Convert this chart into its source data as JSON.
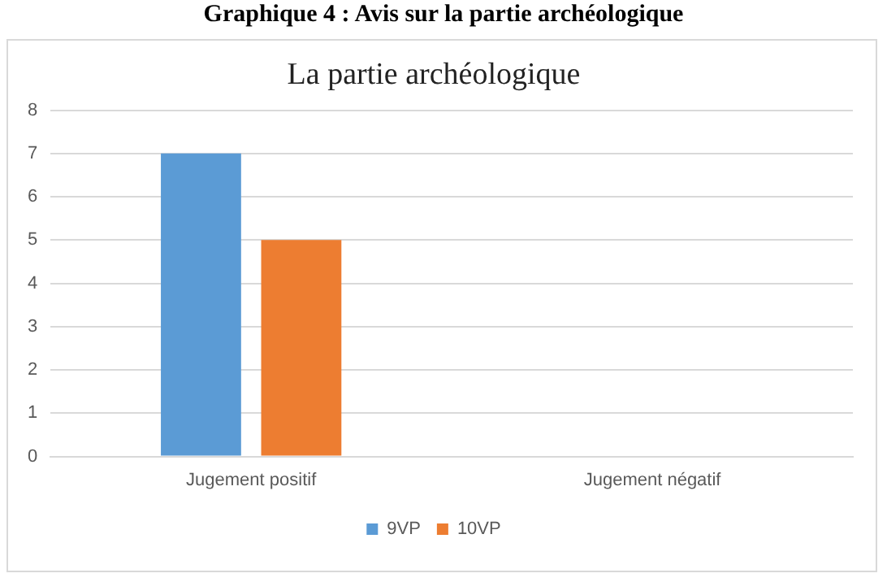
{
  "chart_data": {
    "type": "bar",
    "title": "Graphique 4 : Avis sur la partie archéologique",
    "subtitle": "La partie archéologique",
    "categories": [
      "Jugement positif",
      "Jugement négatif"
    ],
    "series": [
      {
        "name": "9VP",
        "color": "#5b9bd5",
        "values": [
          7,
          0
        ]
      },
      {
        "name": "10VP",
        "color": "#ed7d31",
        "values": [
          5,
          0
        ]
      }
    ],
    "ylim": [
      0,
      8
    ],
    "yticks": [
      0,
      1,
      2,
      3,
      4,
      5,
      6,
      7,
      8
    ],
    "grid": "y",
    "legend": "bottom"
  }
}
